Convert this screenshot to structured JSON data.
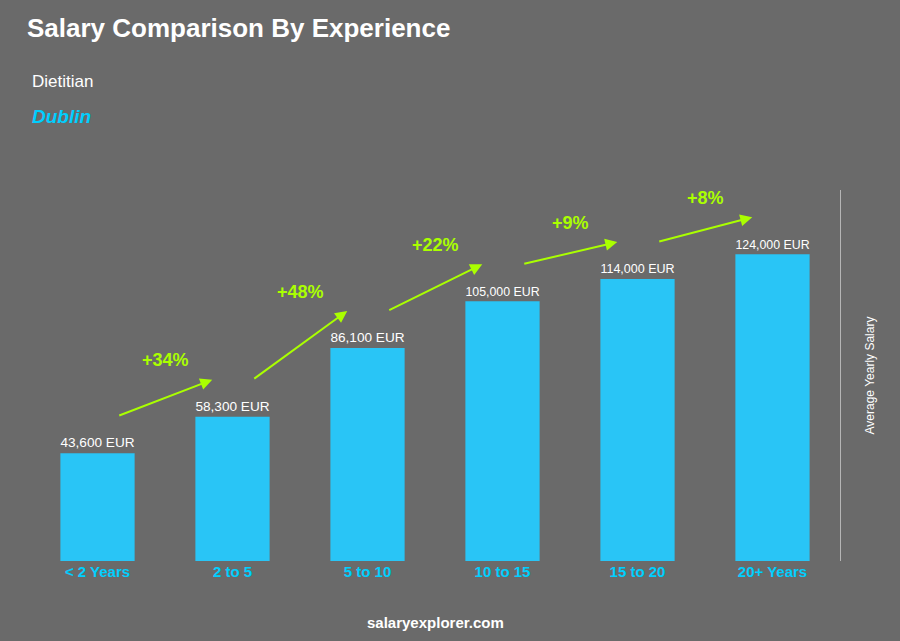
{
  "chart_data": {
    "type": "bar",
    "title": "Salary Comparison By Experience",
    "subtitle": [
      "Dietitian",
      "Dublin"
    ],
    "ylabel": "Average Yearly Salary",
    "categories": [
      "< 2 Years",
      "2 to 5",
      "5 to 10",
      "10 to 15",
      "15 to 20",
      "20+ Years"
    ],
    "values": [
      43600,
      58300,
      86100,
      105000,
      114000,
      124000
    ],
    "value_labels": [
      "43,600 EUR",
      "58,300 EUR",
      "86,100 EUR",
      "105,000 EUR",
      "114,000 EUR",
      "124,000 EUR"
    ],
    "data_labels": true,
    "annotations": [
      "+34%",
      "+48%",
      "+22%",
      "+9%",
      "+8%"
    ],
    "footer": "salaryexplorer.com",
    "color": "#29c5f6",
    "ylim": [
      0,
      150000
    ],
    "tick_labels": "x",
    "grid": false
  }
}
